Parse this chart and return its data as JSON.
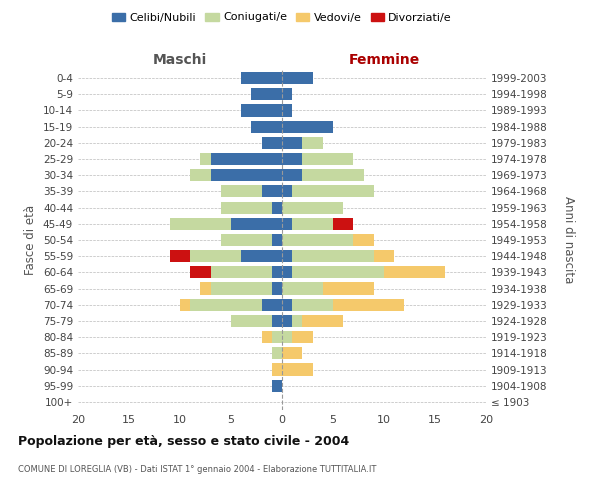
{
  "age_groups": [
    "100+",
    "95-99",
    "90-94",
    "85-89",
    "80-84",
    "75-79",
    "70-74",
    "65-69",
    "60-64",
    "55-59",
    "50-54",
    "45-49",
    "40-44",
    "35-39",
    "30-34",
    "25-29",
    "20-24",
    "15-19",
    "10-14",
    "5-9",
    "0-4"
  ],
  "birth_years": [
    "≤ 1903",
    "1904-1908",
    "1909-1913",
    "1914-1918",
    "1919-1923",
    "1924-1928",
    "1929-1933",
    "1934-1938",
    "1939-1943",
    "1944-1948",
    "1949-1953",
    "1954-1958",
    "1959-1963",
    "1964-1968",
    "1969-1973",
    "1974-1978",
    "1979-1983",
    "1984-1988",
    "1989-1993",
    "1994-1998",
    "1999-2003"
  ],
  "males": {
    "celibi": [
      0,
      1,
      0,
      0,
      0,
      1,
      2,
      1,
      1,
      4,
      1,
      5,
      1,
      2,
      7,
      7,
      2,
      3,
      4,
      3,
      4
    ],
    "coniugati": [
      0,
      0,
      0,
      1,
      1,
      4,
      7,
      6,
      6,
      5,
      5,
      6,
      5,
      4,
      2,
      1,
      0,
      0,
      0,
      0,
      0
    ],
    "vedovi": [
      0,
      0,
      1,
      0,
      1,
      0,
      1,
      1,
      0,
      0,
      0,
      0,
      0,
      0,
      0,
      0,
      0,
      0,
      0,
      0,
      0
    ],
    "divorziati": [
      0,
      0,
      0,
      0,
      0,
      0,
      0,
      0,
      2,
      2,
      0,
      0,
      0,
      0,
      0,
      0,
      0,
      0,
      0,
      0,
      0
    ]
  },
  "females": {
    "nubili": [
      0,
      0,
      0,
      0,
      0,
      1,
      1,
      0,
      1,
      1,
      0,
      1,
      0,
      1,
      2,
      2,
      2,
      5,
      1,
      1,
      3
    ],
    "coniugate": [
      0,
      0,
      0,
      0,
      1,
      1,
      4,
      4,
      9,
      8,
      7,
      4,
      6,
      8,
      6,
      5,
      2,
      0,
      0,
      0,
      0
    ],
    "vedove": [
      0,
      0,
      3,
      2,
      2,
      4,
      7,
      5,
      6,
      2,
      2,
      0,
      0,
      0,
      0,
      0,
      0,
      0,
      0,
      0,
      0
    ],
    "divorziate": [
      0,
      0,
      0,
      0,
      0,
      0,
      0,
      0,
      0,
      0,
      0,
      2,
      0,
      0,
      0,
      0,
      0,
      0,
      0,
      0,
      0
    ]
  },
  "color_celibi": "#3B6EA8",
  "color_coniugati": "#C5D9A0",
  "color_vedovi": "#F5C96B",
  "color_divorziati": "#CC1111",
  "title": "Popolazione per età, sesso e stato civile - 2004",
  "subtitle": "COMUNE DI LOREGLIA (VB) - Dati ISTAT 1° gennaio 2004 - Elaborazione TUTTITALIA.IT",
  "xlabel_left": "Maschi",
  "xlabel_right": "Femmine",
  "ylabel_left": "Fasce di età",
  "ylabel_right": "Anni di nascita",
  "xlim": 20,
  "bg_color": "#FFFFFF",
  "grid_color": "#BBBBBB",
  "legend_labels": [
    "Celibi/Nubili",
    "Coniugati/e",
    "Vedovi/e",
    "Divorziati/e"
  ]
}
